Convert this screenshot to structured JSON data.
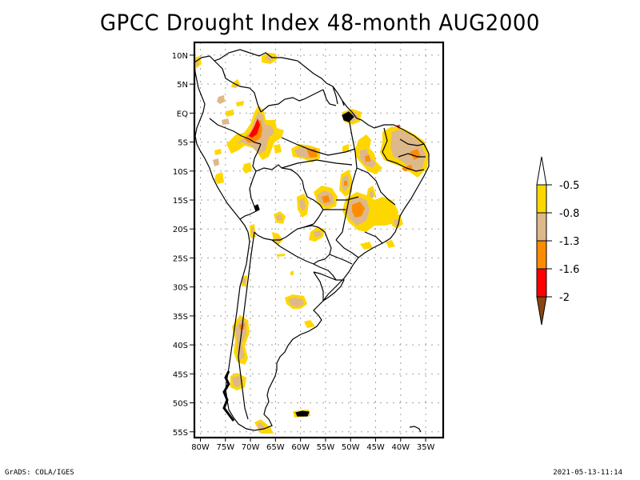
{
  "title": "GPCC Drought Index 48-month AUG2000",
  "footer": {
    "left": "GrADS: COLA/IGES",
    "right": "2021-05-13-11:14"
  },
  "chart_data": {
    "type": "map",
    "title": "GPCC Drought Index 48-month AUG2000",
    "region": "South America",
    "lat_ticks": [
      "10N",
      "5N",
      "EQ",
      "5S",
      "10S",
      "15S",
      "20S",
      "25S",
      "30S",
      "35S",
      "40S",
      "45S",
      "50S",
      "55S"
    ],
    "lat_values": [
      10,
      5,
      0,
      -5,
      -10,
      -15,
      -20,
      -25,
      -30,
      -35,
      -40,
      -45,
      -50,
      -55
    ],
    "lon_ticks": [
      "80W",
      "75W",
      "70W",
      "65W",
      "60W",
      "55W",
      "50W",
      "45W",
      "40W",
      "35W"
    ],
    "lon_values": [
      -80,
      -75,
      -70,
      -65,
      -60,
      -55,
      -50,
      -45,
      -40,
      -35
    ],
    "lon_range": [
      -81.2,
      -31.5
    ],
    "lat_range": [
      -56,
      12.2
    ],
    "grid": true,
    "colorbar": {
      "placement": "right",
      "levels": [
        "-0.5",
        "-0.8",
        "-1.3",
        "-1.6",
        "-2"
      ],
      "colors": [
        "#ffffff",
        "#ffd700",
        "#ddb88a",
        "#ff8c00",
        "#ff0000",
        "#8b4513"
      ]
    },
    "drought_patches": [
      {
        "name": "amazon-west",
        "lon": -69.5,
        "lat": -4,
        "max_class": "-2"
      },
      {
        "name": "amazon-central",
        "lon": -60,
        "lat": -7,
        "max_class": "-1.6"
      },
      {
        "name": "northeast-brazil",
        "lon": -37.5,
        "lat": -6,
        "max_class": "-1.6"
      },
      {
        "name": "central-brazil",
        "lon": -46,
        "lat": -16,
        "max_class": "-1.6"
      },
      {
        "name": "mato-grosso",
        "lon": -53,
        "lat": -14,
        "max_class": "-1.6"
      },
      {
        "name": "chile-south",
        "lon": -71.5,
        "lat": -38,
        "max_class": "-1.6"
      },
      {
        "name": "venezuela-north",
        "lon": -66,
        "lat": 9,
        "max_class": "-0.8"
      },
      {
        "name": "falklands",
        "lon": -59.5,
        "lat": -51.7,
        "max_class": "-0.5"
      }
    ]
  }
}
